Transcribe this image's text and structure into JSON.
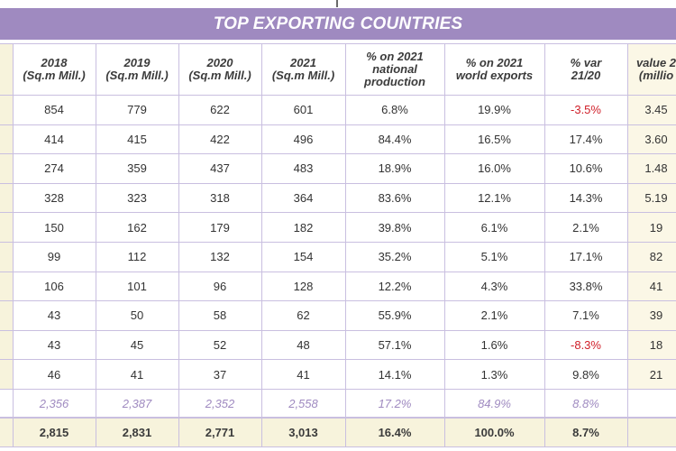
{
  "title": "TOP EXPORTING COUNTRIES",
  "columns": [
    {
      "l1": "2018",
      "l2": "(Sq.m Mill.)"
    },
    {
      "l1": "2019",
      "l2": "(Sq.m Mill.)"
    },
    {
      "l1": "2020",
      "l2": "(Sq.m Mill.)"
    },
    {
      "l1": "2021",
      "l2": "(Sq.m Mill.)"
    },
    {
      "l1": "% on 2021 national",
      "l2": "production"
    },
    {
      "l1": "% on 2021",
      "l2": "world exports"
    },
    {
      "l1": "% var",
      "l2": "21/20"
    },
    {
      "l1": "value 2",
      "l2": "(millio"
    }
  ],
  "rows": [
    [
      "854",
      "779",
      "622",
      "601",
      "6.8%",
      "19.9%",
      "-3.5%",
      "3.45"
    ],
    [
      "414",
      "415",
      "422",
      "496",
      "84.4%",
      "16.5%",
      "17.4%",
      "3.60"
    ],
    [
      "274",
      "359",
      "437",
      "483",
      "18.9%",
      "16.0%",
      "10.6%",
      "1.48"
    ],
    [
      "328",
      "323",
      "318",
      "364",
      "83.6%",
      "12.1%",
      "14.3%",
      "5.19"
    ],
    [
      "150",
      "162",
      "179",
      "182",
      "39.8%",
      "6.1%",
      "2.1%",
      "19"
    ],
    [
      "99",
      "112",
      "132",
      "154",
      "35.2%",
      "5.1%",
      "17.1%",
      "82"
    ],
    [
      "106",
      "101",
      "96",
      "128",
      "12.2%",
      "4.3%",
      "33.8%",
      "41"
    ],
    [
      "43",
      "50",
      "58",
      "62",
      "55.9%",
      "2.1%",
      "7.1%",
      "39"
    ],
    [
      "43",
      "45",
      "52",
      "48",
      "57.1%",
      "1.6%",
      "-8.3%",
      "18"
    ],
    [
      "46",
      "41",
      "37",
      "41",
      "14.1%",
      "1.3%",
      "9.8%",
      "21"
    ]
  ],
  "subtotal": [
    "2,356",
    "2,387",
    "2,352",
    "2,558",
    "17.2%",
    "84.9%",
    "8.8%",
    ""
  ],
  "total": [
    "2,815",
    "2,831",
    "2,771",
    "3,013",
    "16.4%",
    "100.0%",
    "8.7%",
    ""
  ],
  "colors": {
    "header_band": "#9f8ac0",
    "negative": "#d0202a",
    "subtotal_text": "#9f8ac0",
    "total_fill": "#f7f3dc"
  }
}
